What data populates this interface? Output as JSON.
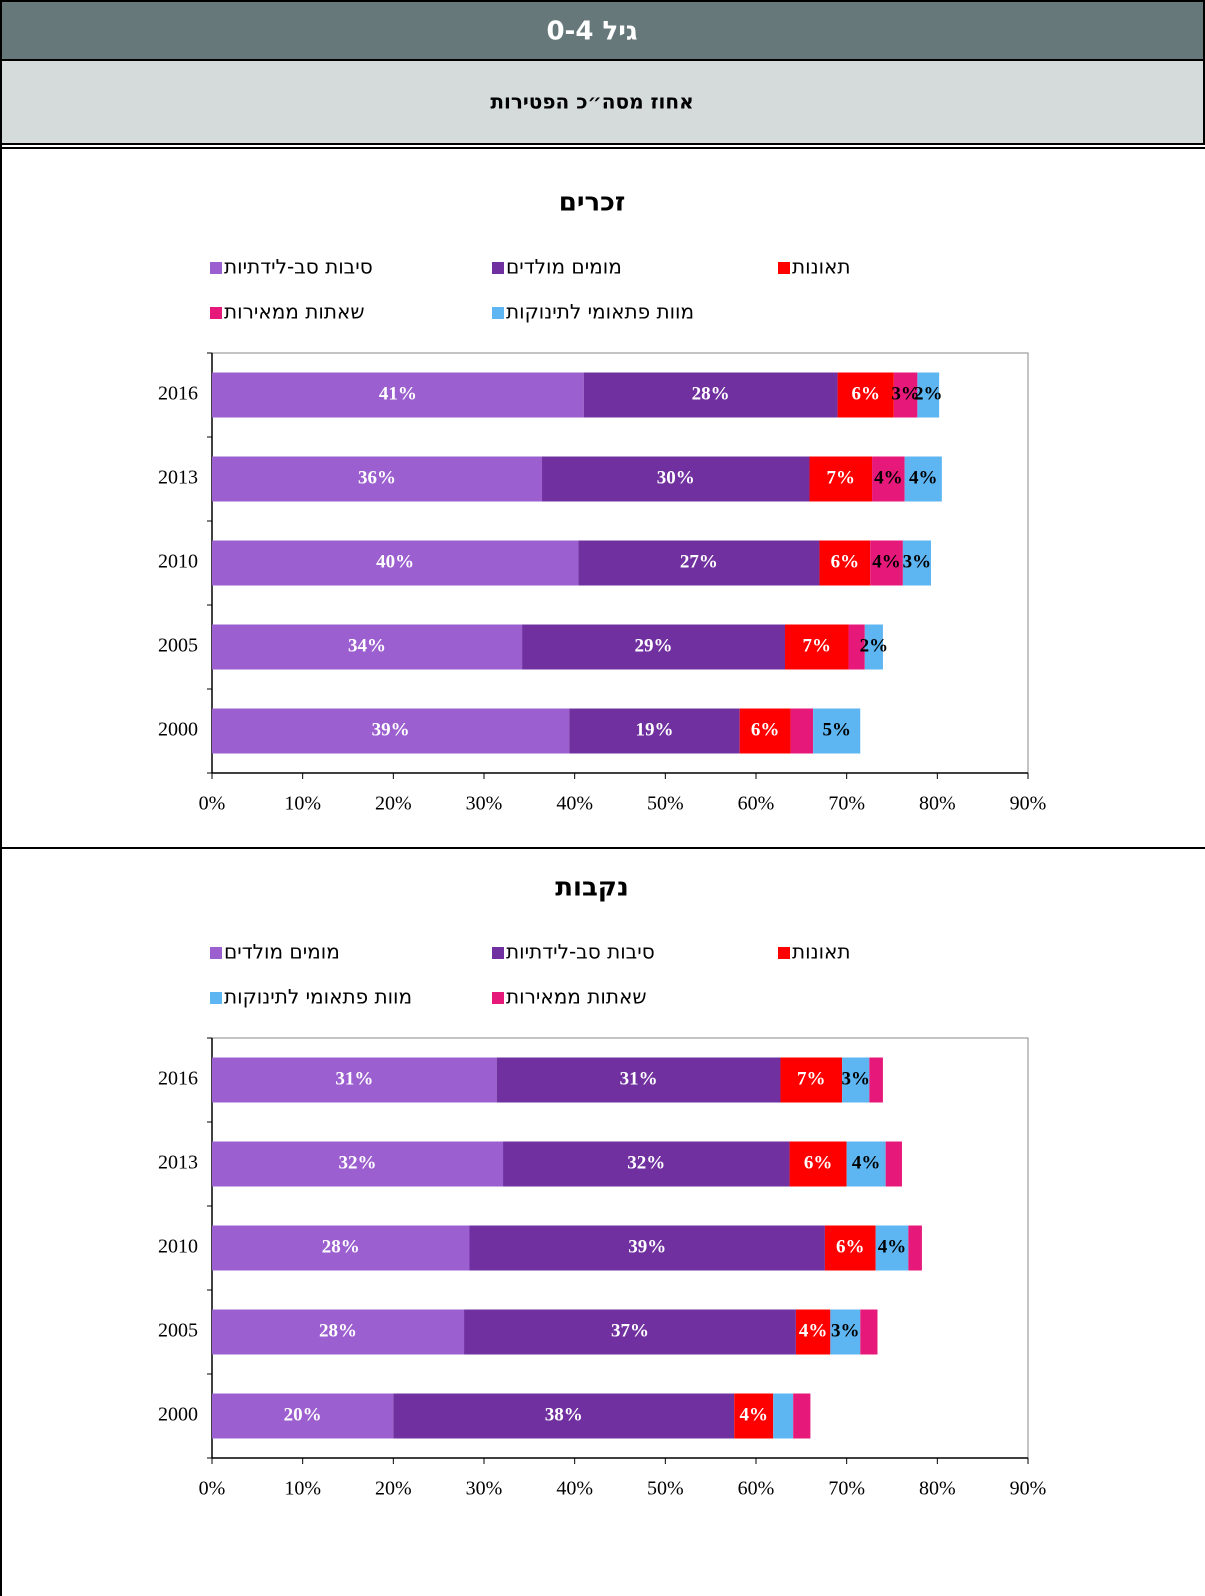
{
  "header": {
    "title": "גיל 0-4",
    "subtitle": "אחוז מסה״כ הפטירות"
  },
  "chart_data": [
    {
      "type": "bar",
      "orientation": "horizontal",
      "stacked": true,
      "title": "זכרים",
      "categories": [
        "2016",
        "2013",
        "2010",
        "2005",
        "2000"
      ],
      "series": [
        {
          "name": "סיבות סב-לידתיות",
          "color": "#9b5fcf",
          "label_color": "#ffffff",
          "values": [
            41,
            36.4,
            40.4,
            34.2,
            39.4
          ],
          "value_labels": [
            "41%",
            "36%",
            "40%",
            "34%",
            "39%"
          ]
        },
        {
          "name": "מומים מולדים",
          "color": "#7030a0",
          "label_color": "#ffffff",
          "values": [
            28,
            29.5,
            26.6,
            29,
            18.8
          ],
          "value_labels": [
            "28%",
            "30%",
            "27%",
            "29%",
            "19%"
          ]
        },
        {
          "name": "תאונות",
          "color": "#ff0000",
          "label_color": "#ffffff",
          "values": [
            6.2,
            6.9,
            5.6,
            7,
            5.6
          ],
          "value_labels": [
            "6%",
            "7%",
            "6%",
            "7%",
            "6%"
          ]
        },
        {
          "name": "שאתות ממאירות",
          "color": "#e6197a",
          "label_color": "#000000",
          "values": [
            2.6,
            3.6,
            3.6,
            1.8,
            2.5
          ],
          "value_labels": [
            "3%",
            "4%",
            "4%",
            null,
            null
          ]
        },
        {
          "name": "מוות פתאומי לתינוקות",
          "color": "#5db6f2",
          "label_color": "#000000",
          "values": [
            2.4,
            4.1,
            3.1,
            2,
            5.2
          ],
          "value_labels": [
            "2%",
            "4%",
            "3%",
            "2%",
            "5%"
          ]
        }
      ],
      "xlim": [
        0,
        90
      ],
      "xticks": [
        {
          "value": 0,
          "label": "0%"
        },
        {
          "value": 10,
          "label": "10%"
        },
        {
          "value": 20,
          "label": "20%"
        },
        {
          "value": 30,
          "label": "30%"
        },
        {
          "value": 40,
          "label": "40%"
        },
        {
          "value": 50,
          "label": "50%"
        },
        {
          "value": 60,
          "label": "60%"
        },
        {
          "value": 70,
          "label": "70%"
        },
        {
          "value": 80,
          "label": "80%"
        },
        {
          "value": 90,
          "label": "90%"
        }
      ],
      "grid": false
    },
    {
      "type": "bar",
      "orientation": "horizontal",
      "stacked": true,
      "title": "נקבות",
      "categories": [
        "2016",
        "2013",
        "2010",
        "2005",
        "2000"
      ],
      "series": [
        {
          "name": "מומים מולדים",
          "color": "#9b5fcf",
          "label_color": "#ffffff",
          "values": [
            31.4,
            32.1,
            28.4,
            27.8,
            20
          ],
          "value_labels": [
            "31%",
            "32%",
            "28%",
            "28%",
            "20%"
          ]
        },
        {
          "name": "סיבות סב-לידתיות",
          "color": "#7030a0",
          "label_color": "#ffffff",
          "values": [
            31.3,
            31.6,
            39.2,
            36.6,
            37.6
          ],
          "value_labels": [
            "31%",
            "32%",
            "39%",
            "37%",
            "38%"
          ]
        },
        {
          "name": "תאונות",
          "color": "#ff0000",
          "label_color": "#ffffff",
          "values": [
            6.8,
            6.3,
            5.6,
            3.8,
            4.3
          ],
          "value_labels": [
            "7%",
            "6%",
            "6%",
            "4%",
            "4%"
          ]
        },
        {
          "name": "מוות פתאומי לתינוקות",
          "color": "#5db6f2",
          "label_color": "#000000",
          "values": [
            3,
            4.3,
            3.6,
            3.3,
            2.2
          ],
          "value_labels": [
            "3%",
            "4%",
            "4%",
            "3%",
            null
          ]
        },
        {
          "name": "שאתות ממאירות",
          "color": "#e6197a",
          "label_color": "#000000",
          "values": [
            1.5,
            1.8,
            1.5,
            1.9,
            1.9
          ],
          "value_labels": [
            null,
            null,
            null,
            null,
            null
          ]
        }
      ],
      "xlim": [
        0,
        90
      ],
      "xticks": [
        {
          "value": 0,
          "label": "0%"
        },
        {
          "value": 10,
          "label": "10%"
        },
        {
          "value": 20,
          "label": "20%"
        },
        {
          "value": 30,
          "label": "30%"
        },
        {
          "value": 40,
          "label": "40%"
        },
        {
          "value": 50,
          "label": "50%"
        },
        {
          "value": 60,
          "label": "60%"
        },
        {
          "value": 70,
          "label": "70%"
        },
        {
          "value": 80,
          "label": "80%"
        },
        {
          "value": 90,
          "label": "90%"
        }
      ],
      "grid": false
    }
  ]
}
